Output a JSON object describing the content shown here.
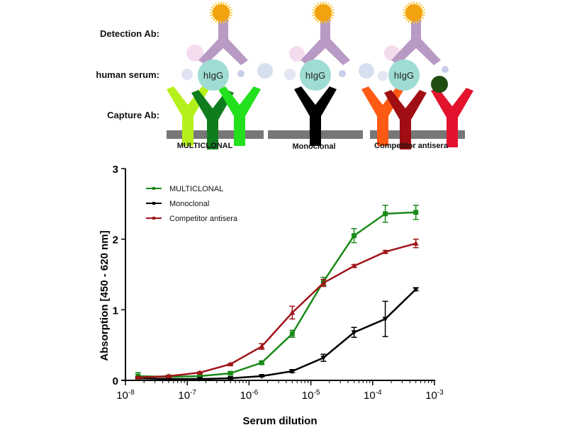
{
  "diagram": {
    "row_labels": [
      "Detection Ab:",
      "human serum:",
      "Capture Ab:"
    ],
    "panels": [
      {
        "label": "MULTICLONAL",
        "capture_colors": [
          "#b5f01c",
          "#0f7d1e",
          "#22e01c"
        ]
      },
      {
        "label": "Monoclonal",
        "capture_colors": [
          "#000000"
        ]
      },
      {
        "label": "Competitor antisera",
        "capture_colors": [
          "#ff5a14",
          "#a00d12",
          "#e3132e"
        ]
      }
    ],
    "antigen_label": "hIgG",
    "colors": {
      "detection_ab": "#b89ac4",
      "antigen": "#9fdcd4",
      "label_sun": "#f2a20c",
      "surface": "#777777",
      "blocked_ball": "#1f4d12"
    }
  },
  "chart_data": {
    "type": "line",
    "title": "",
    "xlabel": "Serum dilution",
    "ylabel": "Absorption [450 - 620 nm]",
    "xscale": "log",
    "xlim": [
      1e-08,
      0.001
    ],
    "ylim": [
      0,
      3
    ],
    "xticks": [
      "10-8",
      "10-7",
      "10-6",
      "10-5",
      "10-4",
      "10-3"
    ],
    "yticks": [
      "0",
      "1",
      "2",
      "3"
    ],
    "legend_position": "top-left",
    "x": [
      1.6e-08,
      5e-08,
      1.6e-07,
      5e-07,
      1.6e-06,
      5e-06,
      1.6e-05,
      5e-05,
      0.00016,
      0.0005
    ],
    "series": [
      {
        "name": "MULTICLONAL",
        "color": "#1a8a1a",
        "marker": "square",
        "values": [
          0.06,
          0.05,
          0.06,
          0.1,
          0.25,
          0.66,
          1.4,
          2.05,
          2.36,
          2.38
        ],
        "errors": [
          0.05,
          0.02,
          0.02,
          0.02,
          0.02,
          0.05,
          0.06,
          0.1,
          0.12,
          0.1
        ]
      },
      {
        "name": "Monoclonal",
        "color": "#000000",
        "marker": "triangle-down",
        "values": [
          0.03,
          0.02,
          0.02,
          0.03,
          0.06,
          0.13,
          0.32,
          0.68,
          0.87,
          1.29
        ],
        "errors": [
          0.01,
          0.01,
          0.01,
          0.01,
          0.01,
          0.02,
          0.05,
          0.07,
          0.25,
          0.02
        ]
      },
      {
        "name": "Competitor antisera",
        "color": "#a01418",
        "marker": "triangle-up",
        "values": [
          0.04,
          0.06,
          0.11,
          0.23,
          0.48,
          0.96,
          1.38,
          1.62,
          1.82,
          1.94
        ],
        "errors": [
          0.01,
          0.01,
          0.01,
          0.01,
          0.04,
          0.09,
          0.05,
          0.02,
          0.02,
          0.06
        ]
      }
    ]
  }
}
